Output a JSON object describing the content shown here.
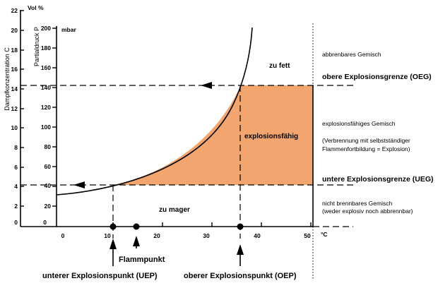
{
  "colors": {
    "explosive_region": "#f2a56f",
    "ink": "#000000"
  },
  "axes": {
    "left_axis_title": "Dampfkonzentration C",
    "left_axis_unit": "Vol %",
    "left_axis_ticks": [
      "22",
      "20",
      "18",
      "16",
      "14",
      "12",
      "10",
      "8",
      "6",
      "4",
      "2",
      "0"
    ],
    "inner_axis_title": "Partialdruck P",
    "inner_axis_unit": "mbar",
    "inner_axis_ticks": [
      "200",
      "180",
      "160",
      "140",
      "120",
      "100",
      "80",
      "60",
      "40",
      "20",
      "0"
    ],
    "x_ticks": [
      "0",
      "10",
      "20",
      "30",
      "40",
      "50"
    ],
    "x_unit": "°C"
  },
  "zones": {
    "rich": "zu fett",
    "explosive": "explosionsfähig",
    "lean": "zu mager"
  },
  "right_labels": {
    "combustible": "abbrenbares Gemisch",
    "oeg": "obere Explosionsgrenze (OEG)",
    "explosive_mixture": "explosionsfähiges Gemisch",
    "explosion_note_1": "(Verbrennung mit selbstständiger",
    "explosion_note_2": "Flammenfortbildung = Explosion)",
    "ueg": "untere Explosionsgrenze (UEG)",
    "non_combustible_1": "nicht brennbares Gemisch",
    "non_combustible_2": "(weder explosiv noch abbrennbar)"
  },
  "bottom_labels": {
    "flashpoint": "Flammpunkt",
    "uep": "unterer Explosionspunkt (UEP)",
    "oep": "oberer Explosionspunkt (OEP)"
  }
}
